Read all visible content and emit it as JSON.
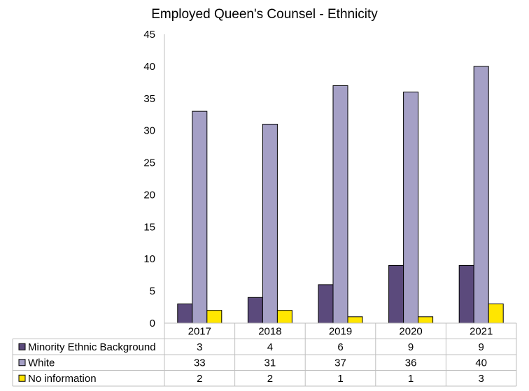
{
  "chart_data": {
    "type": "bar",
    "title": "Employed Queen's Counsel - Ethnicity",
    "xlabel": "",
    "ylabel": "",
    "categories": [
      "2017",
      "2018",
      "2019",
      "2020",
      "2021"
    ],
    "ylim": [
      0,
      45
    ],
    "yticks": [
      0,
      5,
      10,
      15,
      20,
      25,
      30,
      35,
      40,
      45
    ],
    "grid": false,
    "legend": "data-table-below",
    "series": [
      {
        "name": "Minority Ethnic Background",
        "values": [
          3,
          4,
          6,
          9,
          9
        ],
        "color": "#5b4a7c"
      },
      {
        "name": "White",
        "values": [
          33,
          31,
          37,
          36,
          40
        ],
        "color": "#a5a0c6"
      },
      {
        "name": "No information",
        "values": [
          2,
          2,
          1,
          1,
          3
        ],
        "color": "#ffe600"
      }
    ]
  }
}
